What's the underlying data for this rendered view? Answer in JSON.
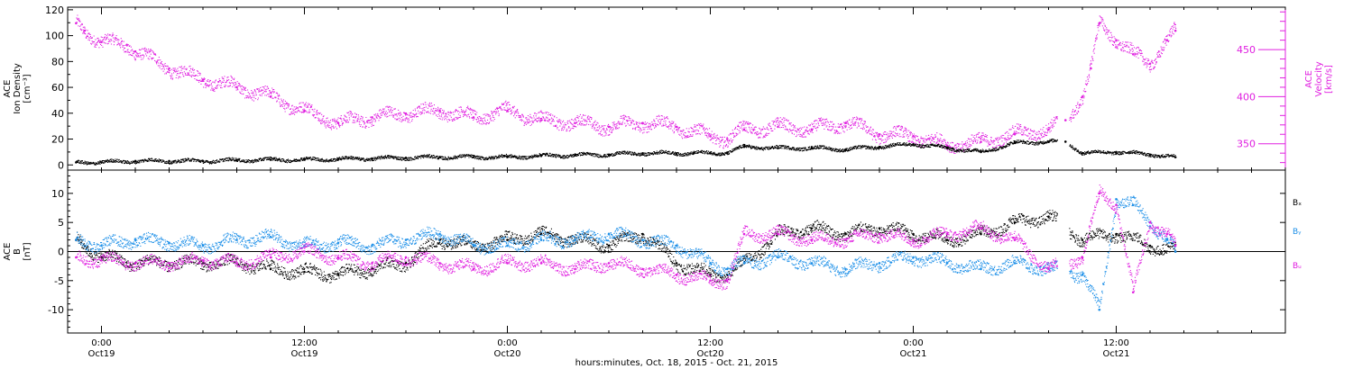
{
  "colors": {
    "black": "#000000",
    "magenta": "#e020e0",
    "blue": "#1e90e8",
    "axis": "#000000"
  },
  "xaxis": {
    "title": "hours:minutes, Oct. 18, 2015 - Oct. 21, 2015",
    "range_hours": [
      -2,
      70
    ],
    "ticks": [
      {
        "hour": 0,
        "time": "0:00",
        "date": "Oct19"
      },
      {
        "hour": 12,
        "time": "12:00",
        "date": "Oct19"
      },
      {
        "hour": 24,
        "time": "0:00",
        "date": "Oct20"
      },
      {
        "hour": 36,
        "time": "12:00",
        "date": "Oct20"
      },
      {
        "hour": 48,
        "time": "0:00",
        "date": "Oct21"
      },
      {
        "hour": 60,
        "time": "12:00",
        "date": "Oct21"
      }
    ]
  },
  "chart_data": [
    {
      "type": "scatter",
      "panel": "top",
      "ylabel_left": [
        "ACE",
        "Ion Density",
        "[cm⁻³]"
      ],
      "ylabel_right": [
        "ACE",
        "Velocity",
        "[km/s]"
      ],
      "ylim_left": [
        -4,
        122
      ],
      "yticks_left": [
        0,
        20,
        40,
        60,
        80,
        100,
        120
      ],
      "ylim_right": [
        322,
        495
      ],
      "yticks_right": [
        350,
        400,
        450
      ],
      "series": [
        {
          "axis": "left",
          "color": "black",
          "x": [
            -1.5,
            0,
            2,
            4,
            6,
            8,
            10,
            12,
            14,
            16,
            18,
            20,
            22,
            24,
            26,
            28,
            30,
            32,
            34,
            35,
            36,
            37,
            38,
            40,
            42,
            44,
            46,
            48,
            50,
            52,
            54,
            56,
            57,
            58,
            60,
            62,
            63.5
          ],
          "y": [
            2,
            2,
            3,
            3,
            3,
            3.5,
            4,
            4,
            4.5,
            5,
            5.5,
            6,
            6,
            6,
            7,
            7.5,
            8,
            9,
            9,
            9,
            9,
            9.5,
            14,
            13,
            13,
            12,
            14,
            16,
            13,
            10,
            17,
            18,
            18,
            9,
            10,
            8,
            6
          ]
        },
        {
          "axis": "right",
          "color": "magenta",
          "x": [
            -1.5,
            -1,
            0,
            1.5,
            2,
            4,
            6,
            8,
            10,
            12,
            14,
            16,
            18,
            20,
            22,
            24,
            26,
            28,
            30,
            32,
            34,
            36,
            37,
            38,
            40,
            42,
            44,
            46,
            48,
            50,
            52,
            54,
            56,
            57,
            58,
            58.5,
            59,
            60,
            61,
            62,
            63,
            63.5
          ],
          "y": [
            478,
            470,
            458,
            455,
            448,
            430,
            418,
            410,
            400,
            385,
            372,
            378,
            382,
            385,
            378,
            385,
            375,
            372,
            368,
            372,
            368,
            358,
            355,
            365,
            368,
            365,
            372,
            360,
            358,
            348,
            352,
            360,
            365,
            375,
            400,
            430,
            478,
            460,
            445,
            435,
            460,
            470
          ]
        }
      ]
    },
    {
      "type": "scatter",
      "panel": "bottom",
      "ylabel_left": [
        "ACE",
        "B",
        "[nT]"
      ],
      "ylim": [
        -14,
        14
      ],
      "yticks": [
        -10,
        -5,
        0,
        5,
        10
      ],
      "zero_line": true,
      "series": [
        {
          "name": "Bₓ",
          "color": "black",
          "x": [
            -1.5,
            0,
            2,
            4,
            6,
            8,
            10,
            12,
            14,
            16,
            18,
            20,
            22,
            24,
            26,
            28,
            30,
            32,
            34,
            36,
            37,
            38,
            40,
            42,
            44,
            46,
            48,
            50,
            52,
            54,
            56,
            58,
            60,
            62,
            63.5
          ],
          "y": [
            2,
            -1,
            -2,
            -2,
            -2,
            -2,
            -3,
            -3.5,
            -4,
            -3,
            -2,
            2,
            1,
            2,
            3,
            2,
            1,
            3,
            -2,
            -4,
            -4,
            -2,
            3,
            4,
            3,
            4,
            3,
            2,
            3,
            5,
            6,
            2,
            3,
            1,
            0
          ]
        },
        {
          "name": "Bᵧ",
          "color": "blue",
          "x": [
            -1.5,
            0,
            2,
            4,
            6,
            8,
            10,
            12,
            14,
            16,
            18,
            20,
            22,
            24,
            26,
            28,
            30,
            32,
            34,
            36,
            37,
            38,
            40,
            42,
            44,
            46,
            48,
            50,
            52,
            54,
            56,
            58,
            59,
            60,
            61,
            62,
            63,
            63.5
          ],
          "y": [
            2,
            1,
            2,
            1.5,
            1,
            2,
            2.5,
            1,
            1.5,
            1,
            2,
            3,
            1,
            1,
            2,
            2,
            3,
            2,
            1,
            -2,
            -3,
            -2,
            -1,
            -2,
            -3,
            -2,
            -1,
            -2,
            -3,
            -2,
            -3,
            -4,
            -10,
            9,
            8,
            5,
            2,
            0
          ]
        },
        {
          "name": "Bᵤ",
          "color": "magenta",
          "x": [
            -1.5,
            0,
            2,
            4,
            6,
            8,
            10,
            12,
            14,
            16,
            18,
            20,
            22,
            24,
            26,
            28,
            30,
            32,
            34,
            36,
            37,
            38,
            40,
            42,
            44,
            46,
            48,
            50,
            52,
            54,
            56,
            58,
            59,
            60,
            61,
            62,
            63,
            63.5
          ],
          "y": [
            -1,
            -1.5,
            -2,
            -2,
            -1.5,
            -2,
            -1,
            0,
            -1,
            -2,
            -1,
            -2,
            -3,
            -2,
            -2,
            -3,
            -2,
            -3,
            -4,
            -5,
            -5,
            3,
            3,
            2,
            2,
            3,
            2,
            3,
            4,
            2,
            -3,
            -1,
            10,
            8,
            -7,
            5,
            3,
            1
          ]
        }
      ]
    }
  ]
}
